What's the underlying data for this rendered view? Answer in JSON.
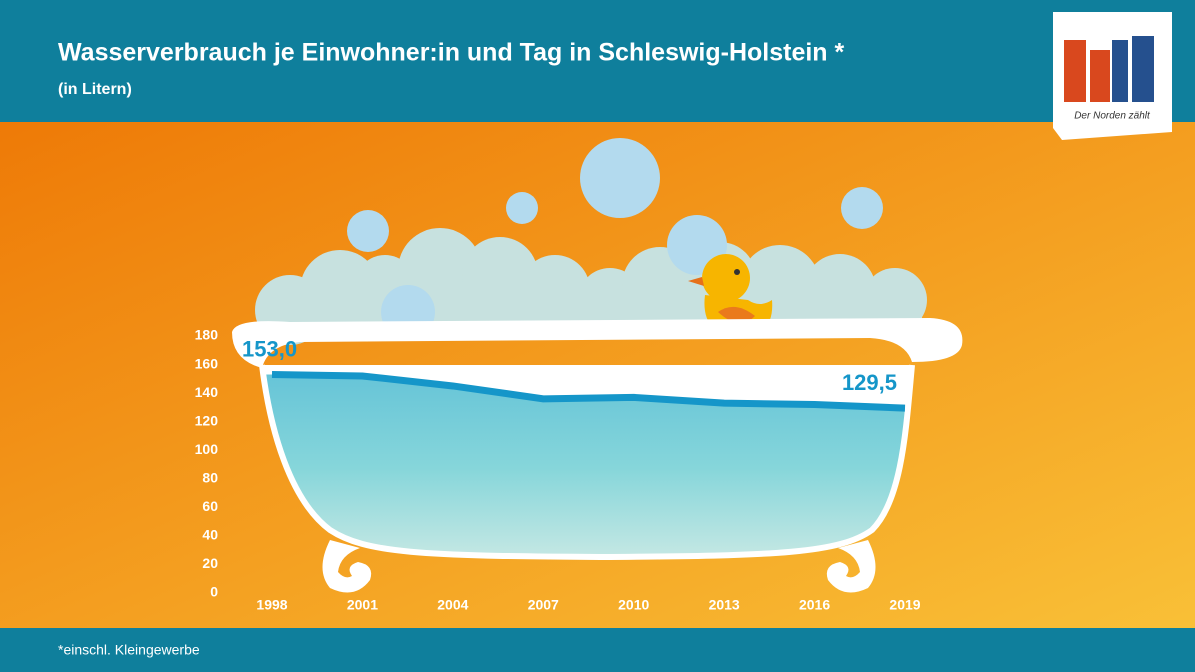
{
  "chart_data": {
    "type": "line",
    "title": "Wasserverbrauch je Einwohner:in und Tag in Schleswig-Holstein *",
    "subtitle": "(in Litern)",
    "footnote": "*einschl. Kleingewerbe",
    "logo_text": "Der Norden zählt",
    "categories": [
      "1998",
      "2001",
      "2004",
      "2007",
      "2010",
      "2013",
      "2016",
      "2019"
    ],
    "values": [
      153.0,
      152,
      145,
      136,
      137,
      133,
      132,
      129.5
    ],
    "value_labels": [
      "153,0",
      null,
      null,
      null,
      null,
      null,
      null,
      "129,5"
    ],
    "color": "#1596c9",
    "ylim": [
      0,
      180
    ],
    "yticks": [
      0,
      20,
      40,
      60,
      80,
      100,
      120,
      140,
      160,
      180
    ]
  }
}
